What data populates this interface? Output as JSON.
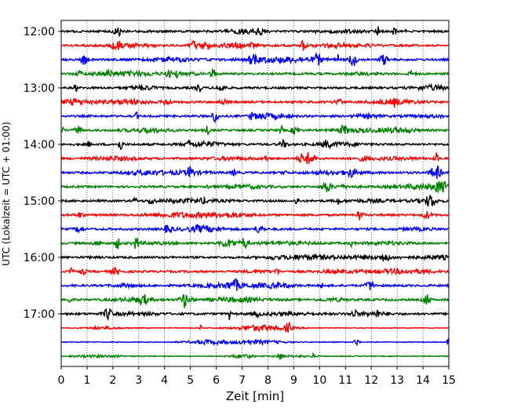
{
  "chart_data": {
    "type": "line",
    "title": "",
    "xlabel": "Zeit  [min]",
    "ylabel": "UTC (Lokalzeit = UTC + 01:00)",
    "xlim": [
      0,
      15
    ],
    "x_ticks": [
      0,
      1,
      2,
      3,
      4,
      5,
      6,
      7,
      8,
      9,
      10,
      11,
      12,
      13,
      14,
      15
    ],
    "x_tick_labels": [
      "0",
      "1",
      "2",
      "3",
      "4",
      "5",
      "6",
      "7",
      "8",
      "9",
      "10",
      "11",
      "12",
      "13",
      "14",
      "15"
    ],
    "y_tick_labels": [
      "12:00",
      "13:00",
      "14:00",
      "15:00",
      "16:00",
      "17:00"
    ],
    "y_ticks_hours": [
      12,
      13,
      14,
      15,
      16,
      17
    ],
    "trace_interval_minutes": 15,
    "start_time": "12:00",
    "trace_count": 24,
    "trace_colors": [
      "#000000",
      "#ff0000",
      "#0000ff",
      "#008000"
    ],
    "grid": {
      "vertical": true,
      "style": "dotted"
    }
  }
}
